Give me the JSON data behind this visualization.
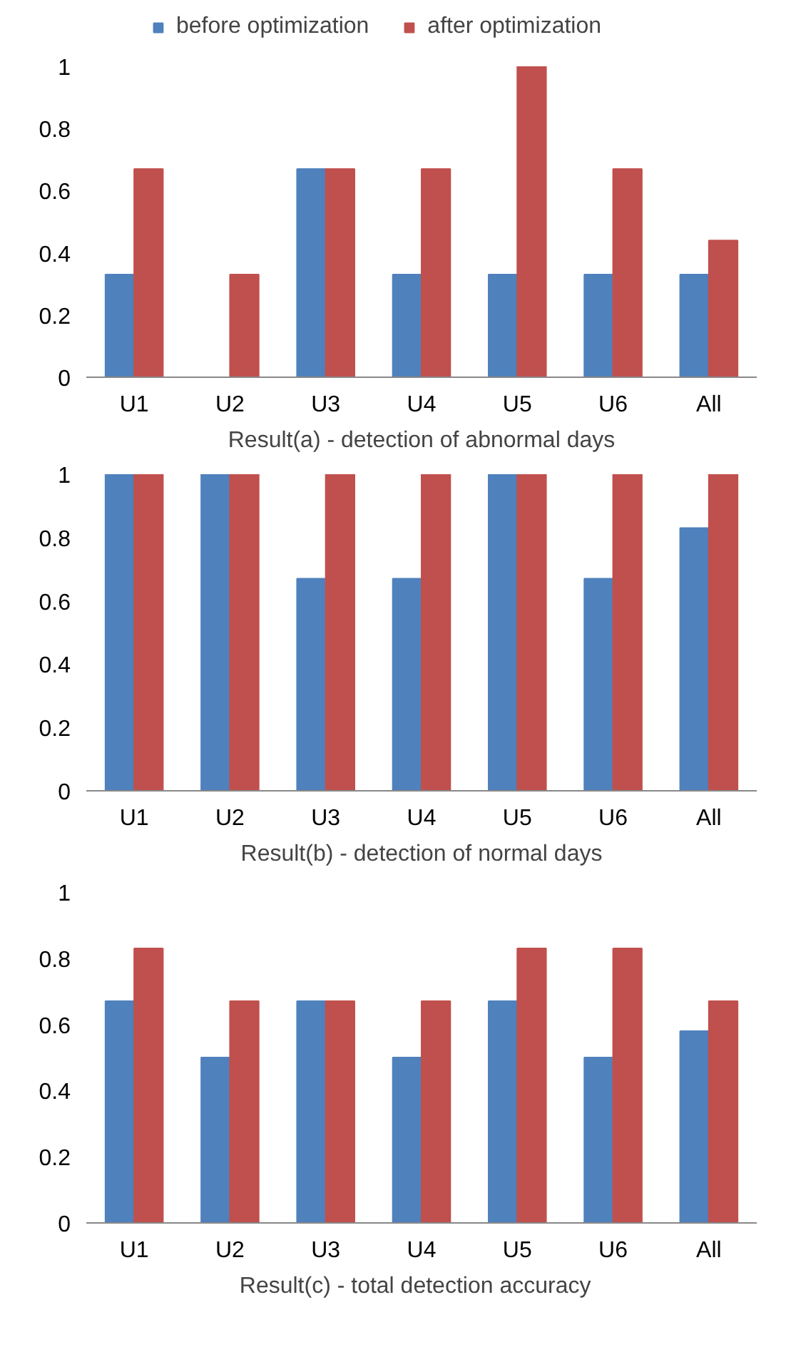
{
  "chart_data": [
    {
      "type": "bar",
      "xlabel": "Result(a) - detection of abnormal days",
      "categories": [
        "U1",
        "U2",
        "U3",
        "U4",
        "U5",
        "U6",
        "All"
      ],
      "ylim": [
        0,
        1
      ],
      "yticks": [
        0,
        0.2,
        0.4,
        0.6,
        0.8,
        1
      ],
      "legend": "top",
      "grid": false,
      "series": [
        {
          "name": "before optimization",
          "color": "#4f81bd",
          "values": [
            0.33,
            0,
            0.67,
            0.33,
            0.33,
            0.33,
            0.33
          ]
        },
        {
          "name": "after optimization",
          "color": "#c0504d",
          "values": [
            0.67,
            0.33,
            0.67,
            0.67,
            1,
            0.67,
            0.44
          ]
        }
      ]
    },
    {
      "type": "bar",
      "xlabel": "Result(b) - detection of normal days",
      "categories": [
        "U1",
        "U2",
        "U3",
        "U4",
        "U5",
        "U6",
        "All"
      ],
      "ylim": [
        0,
        1
      ],
      "yticks": [
        0,
        0.2,
        0.4,
        0.6,
        0.8,
        1
      ],
      "grid": false,
      "series": [
        {
          "color": "#4f81bd",
          "values": [
            1,
            1,
            0.67,
            0.67,
            1,
            0.67,
            0.83
          ]
        },
        {
          "color": "#c0504d",
          "values": [
            1,
            1,
            1,
            1,
            1,
            1,
            1
          ]
        }
      ]
    },
    {
      "type": "bar",
      "xlabel": "Result(c)   - total detection accuracy",
      "categories": [
        "U1",
        "U2",
        "U3",
        "U4",
        "U5",
        "U6",
        "All"
      ],
      "ylim": [
        0,
        1
      ],
      "yticks": [
        0,
        0.2,
        0.4,
        0.6,
        0.8,
        1
      ],
      "grid": false,
      "series": [
        {
          "color": "#4f81bd",
          "values": [
            0.67,
            0.5,
            0.67,
            0.5,
            0.67,
            0.5,
            0.58
          ]
        },
        {
          "color": "#c0504d",
          "values": [
            0.83,
            0.67,
            0.67,
            0.67,
            0.83,
            0.83,
            0.67
          ]
        }
      ]
    }
  ]
}
